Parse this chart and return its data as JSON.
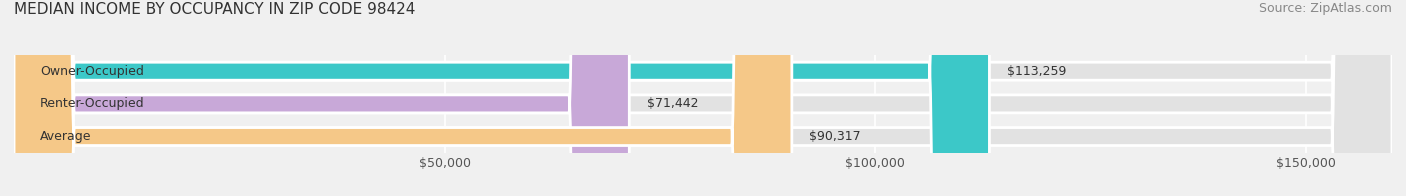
{
  "title": "MEDIAN INCOME BY OCCUPANCY IN ZIP CODE 98424",
  "source": "Source: ZipAtlas.com",
  "categories": [
    "Owner-Occupied",
    "Renter-Occupied",
    "Average"
  ],
  "values": [
    113259,
    71442,
    90317
  ],
  "value_labels": [
    "$113,259",
    "$71,442",
    "$90,317"
  ],
  "bar_colors": [
    "#3cc8c8",
    "#c8a8d8",
    "#f5c888"
  ],
  "background_color": "#f0f0f0",
  "bar_bg_color": "#e2e2e2",
  "xlim": [
    0,
    160000
  ],
  "xticks": [
    50000,
    100000,
    150000
  ],
  "xtick_labels": [
    "$50,000",
    "$100,000",
    "$150,000"
  ],
  "title_fontsize": 11,
  "source_fontsize": 9,
  "label_fontsize": 9,
  "value_fontsize": 9,
  "bar_height": 0.55
}
